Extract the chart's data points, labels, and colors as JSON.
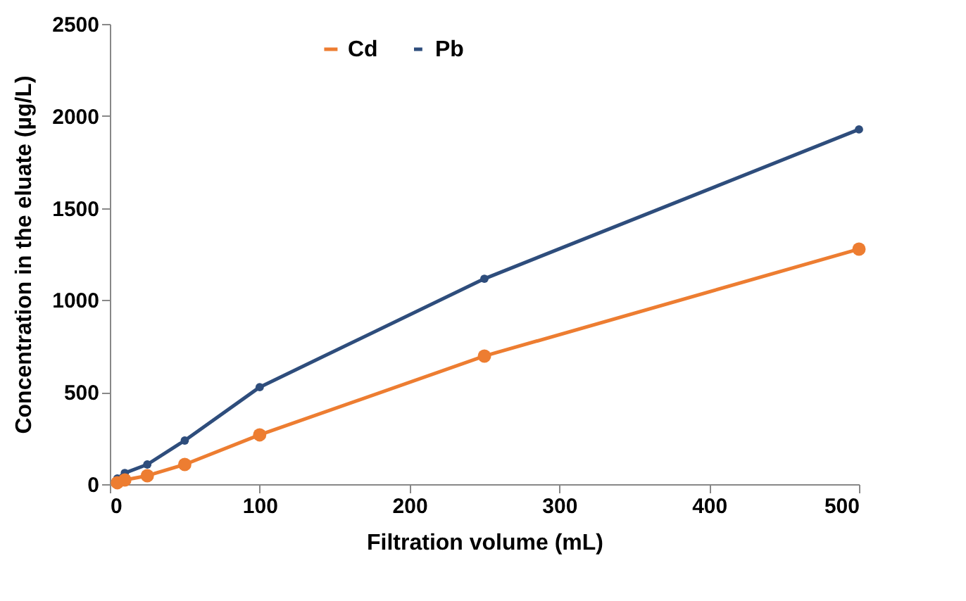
{
  "chart_data": {
    "type": "line",
    "xlabel": "Filtration volume (mL)",
    "ylabel": "Concentration in the eluate (µg/L)",
    "x": [
      5,
      10,
      25,
      50,
      100,
      250,
      500
    ],
    "series": [
      {
        "name": "Cd",
        "color": "#ed7d31",
        "values": [
          8,
          23,
          46,
          107,
          268,
          696,
          1277
        ]
      },
      {
        "name": "Pb",
        "color": "#2e4d7c",
        "values": [
          31,
          61,
          107,
          237,
          527,
          1116,
          1927
        ]
      }
    ],
    "xlim": [
      0,
      500
    ],
    "xticks": [
      0,
      100,
      200,
      300,
      400,
      500
    ],
    "ylim": [
      0,
      2500
    ],
    "yticks": [
      0,
      500,
      1000,
      1500,
      2000,
      2500
    ],
    "legend": "top",
    "marker": "circle",
    "line_style": "solid"
  }
}
